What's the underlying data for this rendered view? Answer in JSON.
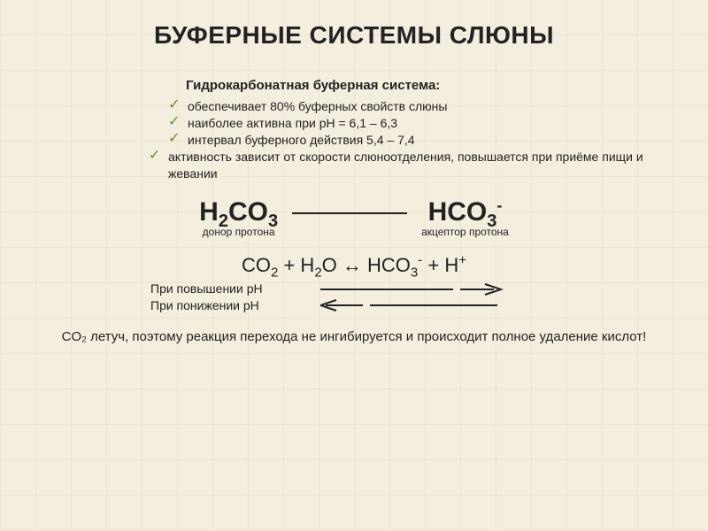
{
  "title": "БУФЕРНЫЕ СИСТЕМЫ СЛЮНЫ",
  "subhead": "Гидрокарбонатная буферная система:",
  "bullets": [
    "обеспечивает 80% буферных свойств слюны",
    "наиболее активна при pH = 6,1 – 6,3",
    "интервал буферного действия 5,4 – 7,4",
    "активность зависит от скорости слюноотделения, повышается при приёме пищи и жевании"
  ],
  "eq": {
    "left_html": "H<sub>2</sub>CO<sub>3</sub>",
    "left_caption": "донор протона",
    "right_html": "HCO<sub>3</sub><sup>-</sup>",
    "right_caption": "акцептор протона"
  },
  "reaction_html": "CO<sub>2</sub> + H<sub>2</sub>O ↔ HCO<sub>3</sub><sup>-</sup> + H<sup>+</sup>",
  "ph_lines": {
    "up": "При повышении pH",
    "down": "При понижении pH"
  },
  "footnote": "CO₂ летуч, поэтому реакция перехода не ингибируется и происходит полное удаление кислот!",
  "colors": {
    "text": "#222222",
    "check": "#6d8a3a",
    "line": "#222222",
    "background": "#f4eedf"
  }
}
